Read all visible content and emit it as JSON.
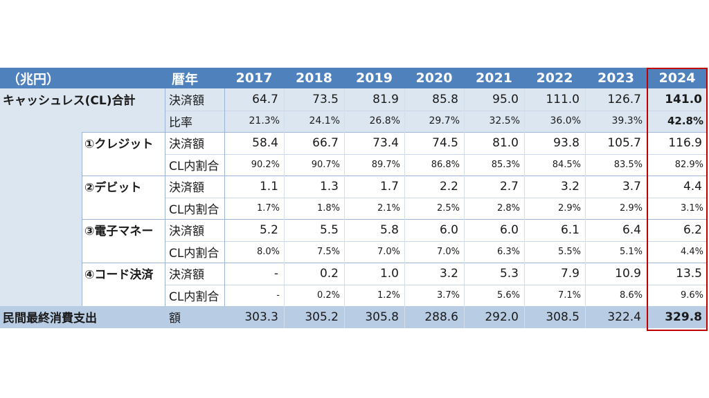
{
  "chart_data": {
    "type": "table",
    "unit_label": "（兆円）",
    "year_header": "暦年",
    "years": [
      "2017",
      "2018",
      "2019",
      "2020",
      "2021",
      "2022",
      "2023",
      "2024"
    ],
    "sections": [
      {
        "name": "キャッシュレス(CL)合計",
        "rows": [
          {
            "metric": "決済額",
            "values": [
              "64.7",
              "73.5",
              "81.9",
              "85.8",
              "95.0",
              "111.0",
              "126.7",
              "141.0"
            ]
          },
          {
            "metric": "比率",
            "values": [
              "21.3%",
              "24.1%",
              "26.8%",
              "29.7%",
              "32.5%",
              "36.0%",
              "39.3%",
              "42.8%"
            ]
          }
        ]
      },
      {
        "name": "①クレジット",
        "rows": [
          {
            "metric": "決済額",
            "values": [
              "58.4",
              "66.7",
              "73.4",
              "74.5",
              "81.0",
              "93.8",
              "105.7",
              "116.9"
            ]
          },
          {
            "metric": "CL内割合",
            "values": [
              "90.2%",
              "90.7%",
              "89.7%",
              "86.8%",
              "85.3%",
              "84.5%",
              "83.5%",
              "82.9%"
            ]
          }
        ]
      },
      {
        "name": "②デビット",
        "rows": [
          {
            "metric": "決済額",
            "values": [
              "1.1",
              "1.3",
              "1.7",
              "2.2",
              "2.7",
              "3.2",
              "3.7",
              "4.4"
            ]
          },
          {
            "metric": "CL内割合",
            "values": [
              "1.7%",
              "1.8%",
              "2.1%",
              "2.5%",
              "2.8%",
              "2.9%",
              "2.9%",
              "3.1%"
            ]
          }
        ]
      },
      {
        "name": "③電子マネー",
        "rows": [
          {
            "metric": "決済額",
            "values": [
              "5.2",
              "5.5",
              "5.8",
              "6.0",
              "6.0",
              "6.1",
              "6.4",
              "6.2"
            ]
          },
          {
            "metric": "CL内割合",
            "values": [
              "8.0%",
              "7.5%",
              "7.0%",
              "7.0%",
              "6.3%",
              "5.5%",
              "5.1%",
              "4.4%"
            ]
          }
        ]
      },
      {
        "name": "④コード決済",
        "rows": [
          {
            "metric": "決済額",
            "values": [
              "-",
              "0.2",
              "1.0",
              "3.2",
              "5.3",
              "7.9",
              "10.9",
              "13.5"
            ]
          },
          {
            "metric": "CL内割合",
            "values": [
              "-",
              "0.2%",
              "1.2%",
              "3.7%",
              "5.6%",
              "7.1%",
              "8.6%",
              "9.6%"
            ]
          }
        ]
      }
    ],
    "footer": {
      "name": "民間最終消費支出",
      "metric": "額",
      "values": [
        "303.3",
        "305.2",
        "305.8",
        "288.6",
        "292.0",
        "308.5",
        "322.4",
        "329.8"
      ]
    },
    "highlighted_year": "2024",
    "colors": {
      "header": "#4f81bd",
      "total_rows": "#dce6f1",
      "footer_row": "#b8cce4",
      "highlight_border": "#c00000"
    }
  }
}
